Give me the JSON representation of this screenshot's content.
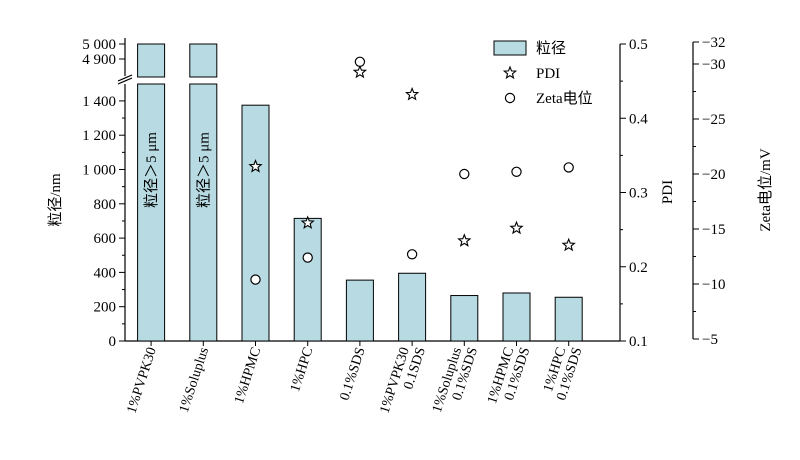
{
  "chart_data": {
    "type": "bar",
    "categories": [
      [
        "1%PVPK30"
      ],
      [
        "1%Soluplus"
      ],
      [
        "1%HPMC"
      ],
      [
        "1%HPC"
      ],
      [
        "0.1%SDS"
      ],
      [
        "1%PVPK30",
        "0.1SDS"
      ],
      [
        "1%Soluplus",
        "0.1%SDS"
      ],
      [
        "1%HPMC",
        "0.1%SDS"
      ],
      [
        "1%HPC",
        "0.1%SDS"
      ]
    ],
    "series": [
      {
        "name": "粒径",
        "axis": "left",
        "kind": "bar",
        "color": "#b8dbe3",
        "values": [
          5000,
          5000,
          1375,
          715,
          355,
          395,
          265,
          280,
          255
        ]
      },
      {
        "name": "PDI",
        "axis": "right1",
        "kind": "star",
        "values": [
          null,
          null,
          0.335,
          0.259,
          0.462,
          0.432,
          0.235,
          0.252,
          0.229
        ]
      },
      {
        "name": "Zeta电位",
        "axis": "right2",
        "kind": "circle",
        "values": [
          null,
          null,
          -10.4,
          -12.4,
          -30.2,
          -12.7,
          -20.0,
          -20.2,
          -20.6
        ]
      }
    ],
    "bar_inline_label": "粒径＞5 μm",
    "bar_inline_label_categories": [
      0,
      1
    ],
    "left_axis": {
      "label": "粒径/nm",
      "lower_range": [
        0,
        1500
      ],
      "upper_range": [
        4850,
        5025
      ],
      "lower_ticks": [
        0,
        200,
        400,
        600,
        800,
        1000,
        1200,
        1400
      ],
      "lower_tick_labels": [
        "0",
        "200",
        "400",
        "600",
        "800",
        "1 000",
        "1 200",
        "1 400"
      ],
      "upper_ticks": [
        4900,
        5000
      ],
      "upper_tick_labels": [
        "4 900",
        "5 000"
      ],
      "broken": true
    },
    "right_axis_1": {
      "label": "PDI",
      "range": [
        0.1,
        0.5
      ],
      "ticks": [
        0.1,
        0.2,
        0.3,
        0.4,
        0.5
      ],
      "tick_labels": [
        "0.1",
        "0.2",
        "0.3",
        "0.4",
        "0.5"
      ]
    },
    "right_axis_2": {
      "label": "Zeta电位/mV",
      "range": [
        -5,
        -32
      ],
      "ticks": [
        -5,
        -10,
        -15,
        -20,
        -25,
        -30,
        -32
      ],
      "tick_labels": [
        "−5",
        "−10",
        "−15",
        "−20",
        "−25",
        "−30",
        "−32"
      ]
    },
    "legend": {
      "placement": "top-right",
      "entries": [
        {
          "label": "粒径",
          "kind": "bar"
        },
        {
          "label": "PDI",
          "kind": "star"
        },
        {
          "label": "Zeta电位",
          "kind": "circle"
        }
      ]
    },
    "grid": false
  }
}
